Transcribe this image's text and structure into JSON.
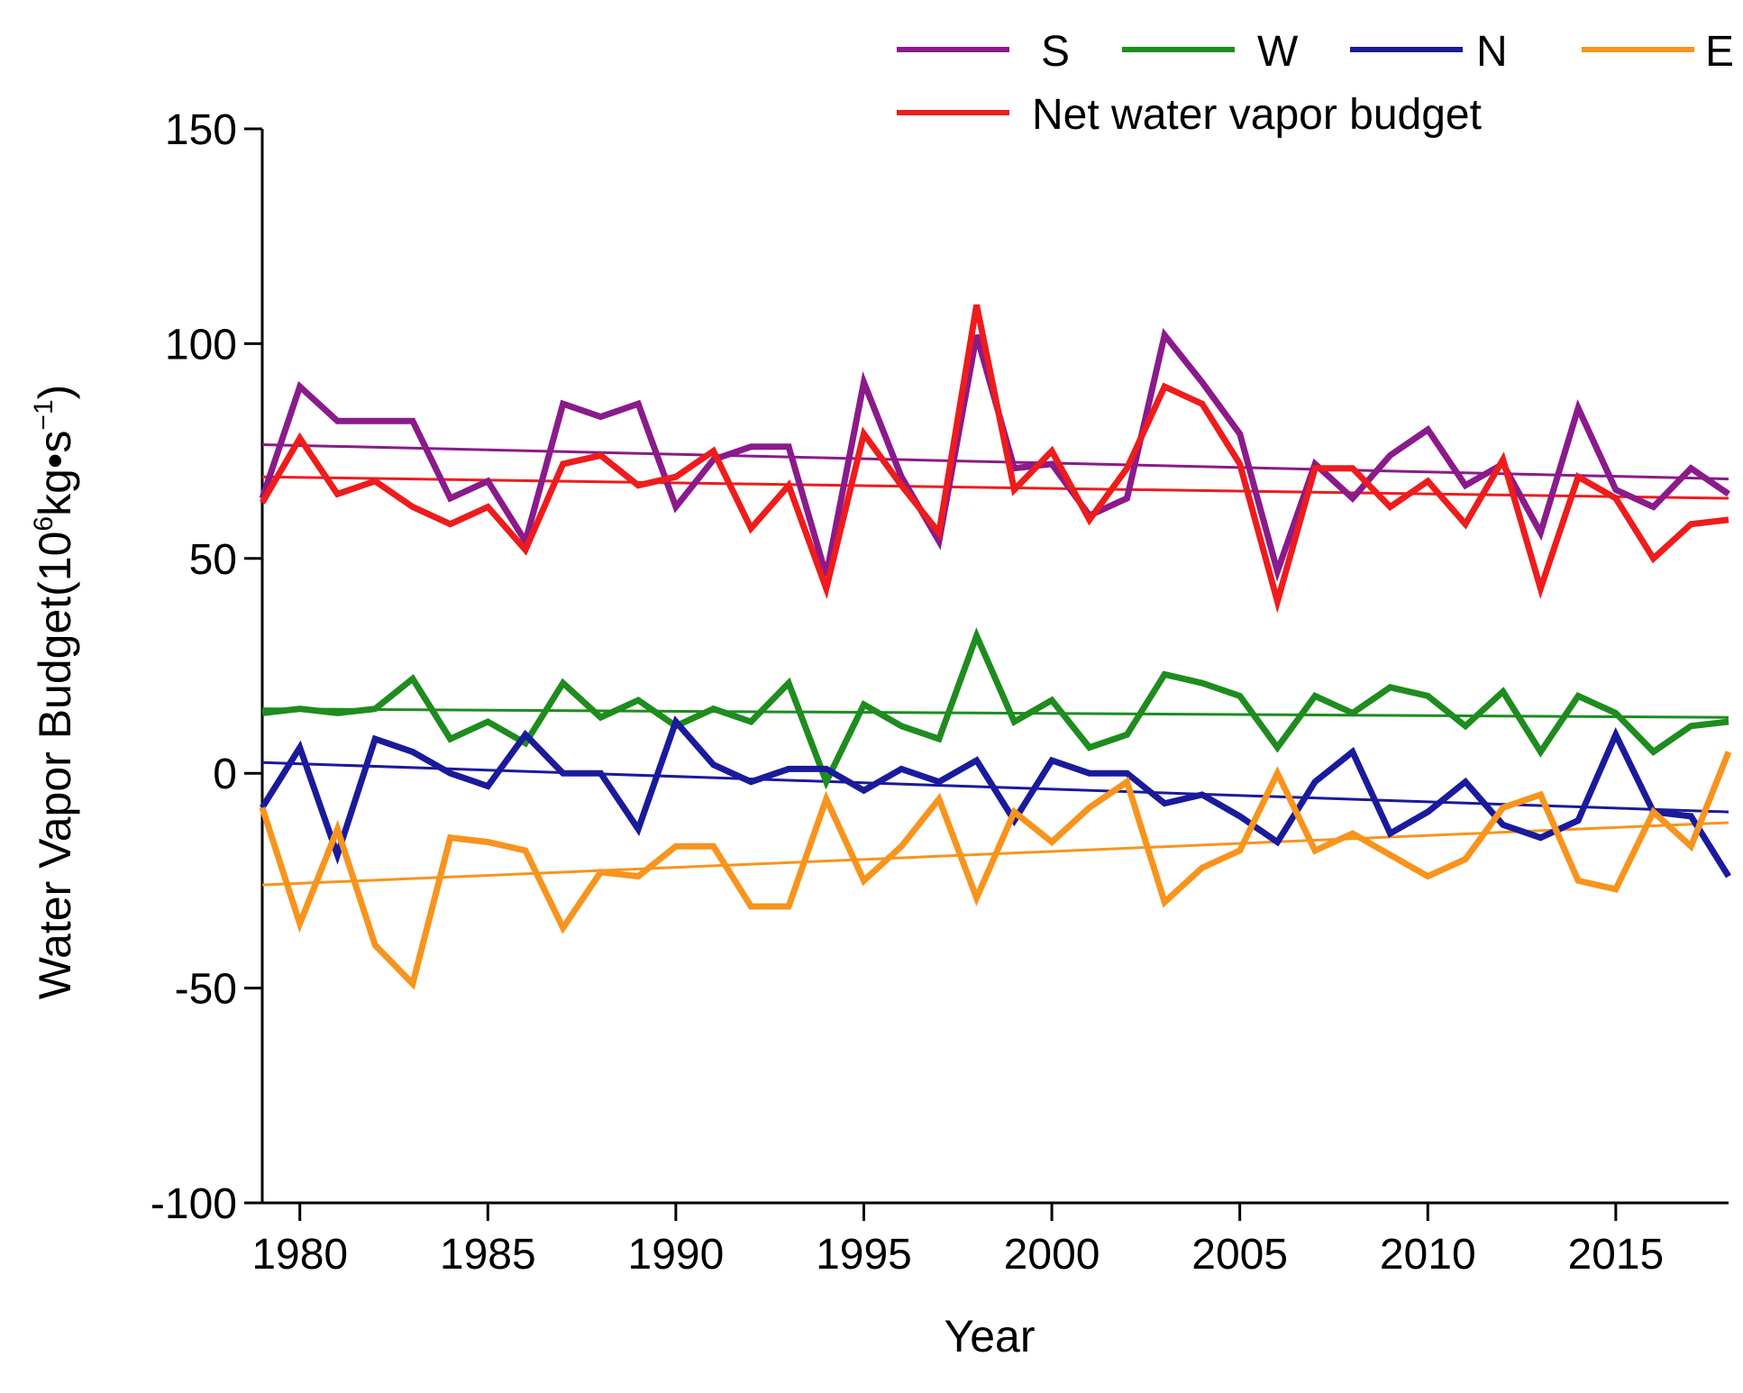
{
  "chart_data": {
    "type": "line",
    "title": "",
    "xlabel": "Year",
    "ylabel_main": "Water Vapor Budget(10",
    "ylabel_exp": "6",
    "ylabel_units": "kg•s",
    "ylabel_units_exp": "−1",
    "ylabel_close": ")",
    "xlim": [
      1979,
      2018
    ],
    "ylim": [
      -100,
      150
    ],
    "xticks": [
      1980,
      1985,
      1990,
      1995,
      2000,
      2005,
      2010,
      2015
    ],
    "xtick_labels": [
      "1980",
      "1985",
      "1990",
      "1995",
      "2000",
      "2005",
      "2010",
      "2015"
    ],
    "yticks": [
      -100,
      -50,
      0,
      50,
      100,
      150
    ],
    "ytick_labels": [
      "-100",
      "-50",
      "0",
      "50",
      "100",
      "150"
    ],
    "legend_position": "top-right",
    "x": [
      1979,
      1980,
      1981,
      1982,
      1983,
      1984,
      1985,
      1986,
      1987,
      1988,
      1989,
      1990,
      1991,
      1992,
      1993,
      1994,
      1995,
      1996,
      1997,
      1998,
      1999,
      2000,
      2001,
      2002,
      2003,
      2004,
      2005,
      2006,
      2007,
      2008,
      2009,
      2010,
      2011,
      2012,
      2013,
      2014,
      2015,
      2016,
      2017,
      2018
    ],
    "series": [
      {
        "name": "S",
        "color": "#8b1a8b",
        "values": [
          64,
          90,
          82,
          82,
          82,
          64,
          68,
          54,
          86,
          83,
          86,
          62,
          73,
          76,
          76,
          46,
          91,
          69,
          54,
          102,
          71,
          72,
          60,
          64,
          102,
          91,
          79,
          47,
          72,
          64,
          74,
          80,
          67,
          72,
          56,
          85,
          66,
          62,
          71,
          65
        ],
        "trend": [
          76.5,
          68.5
        ]
      },
      {
        "name": "W",
        "color": "#1e8c1e",
        "values": [
          14,
          15,
          14,
          15,
          22,
          8,
          12,
          7,
          21,
          13,
          17,
          11,
          15,
          12,
          21,
          -2,
          16,
          11,
          8,
          32,
          12,
          17,
          6,
          9,
          23,
          21,
          18,
          6,
          18,
          14,
          20,
          18,
          11,
          19,
          5,
          18,
          14,
          5,
          11,
          12
        ],
        "trend": [
          15,
          13
        ]
      },
      {
        "name": "N",
        "color": "#1a1a9c",
        "values": [
          -8,
          6,
          -19,
          8,
          5,
          0,
          -3,
          9,
          0,
          0,
          -13,
          12,
          2,
          -2,
          1,
          1,
          -4,
          1,
          -2,
          3,
          -11,
          3,
          0,
          0,
          -7,
          -5,
          -10,
          -16,
          -2,
          5,
          -14,
          -9,
          -2,
          -12,
          -15,
          -11,
          9,
          -9,
          -10,
          -24
        ],
        "trend": [
          2.5,
          -9
        ]
      },
      {
        "name": "E",
        "color": "#f7941d",
        "values": [
          -8,
          -35,
          -13,
          -40,
          -49,
          -15,
          -16,
          -18,
          -36,
          -23,
          -24,
          -17,
          -17,
          -31,
          -31,
          -6,
          -25,
          -17,
          -6,
          -29,
          -9,
          -16,
          -8,
          -2,
          -30,
          -22,
          -18,
          0,
          -18,
          -14,
          -19,
          -24,
          -20,
          -8,
          -5,
          -25,
          -27,
          -9,
          -17,
          5
        ],
        "trend": [
          -26,
          -11.5
        ]
      },
      {
        "name": "Net water vapor budget",
        "color": "#ee1c1c",
        "values": [
          63,
          78,
          65,
          68,
          62,
          58,
          62,
          52,
          72,
          74,
          67,
          69,
          75,
          57,
          67,
          43,
          79,
          67,
          56,
          109,
          66,
          75,
          59,
          71,
          90,
          86,
          72,
          40,
          71,
          71,
          62,
          68,
          58,
          73,
          43,
          69,
          64,
          50,
          58,
          59
        ],
        "trend": [
          69,
          64
        ]
      }
    ]
  }
}
